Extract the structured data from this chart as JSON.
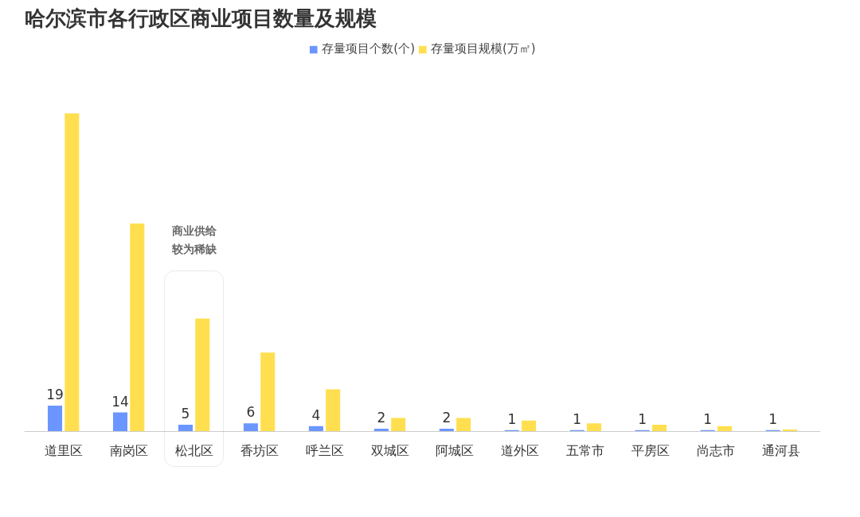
{
  "chart_data": {
    "type": "bar",
    "title": "哈尔滨市各行政区商业项目数量及规模",
    "legend": "top",
    "grid": false,
    "categories": [
      "道里区",
      "南岗区",
      "松北区",
      "香坊区",
      "呼兰区",
      "双城区",
      "阿城区",
      "道外区",
      "五常市",
      "平房区",
      "尚志市",
      "通河县"
    ],
    "series": [
      {
        "name": "存量项目个数(个)",
        "color": "#6b96ff",
        "values": [
          19,
          14,
          5,
          6,
          4,
          2,
          2,
          1,
          1,
          1,
          1,
          1
        ],
        "value_labels": [
          "19",
          "14",
          "5",
          "6",
          "4",
          "2",
          "2",
          "1",
          "1",
          "1",
          "1",
          "1"
        ]
      },
      {
        "name": "存量项目规模(万㎡)",
        "color": "#ffdf4f",
        "values": [
          234,
          153,
          83,
          58,
          31,
          10,
          10,
          8,
          6,
          5,
          4,
          1.5
        ]
      }
    ],
    "annotations": [
      "商业供给较为稀缺"
    ]
  }
}
